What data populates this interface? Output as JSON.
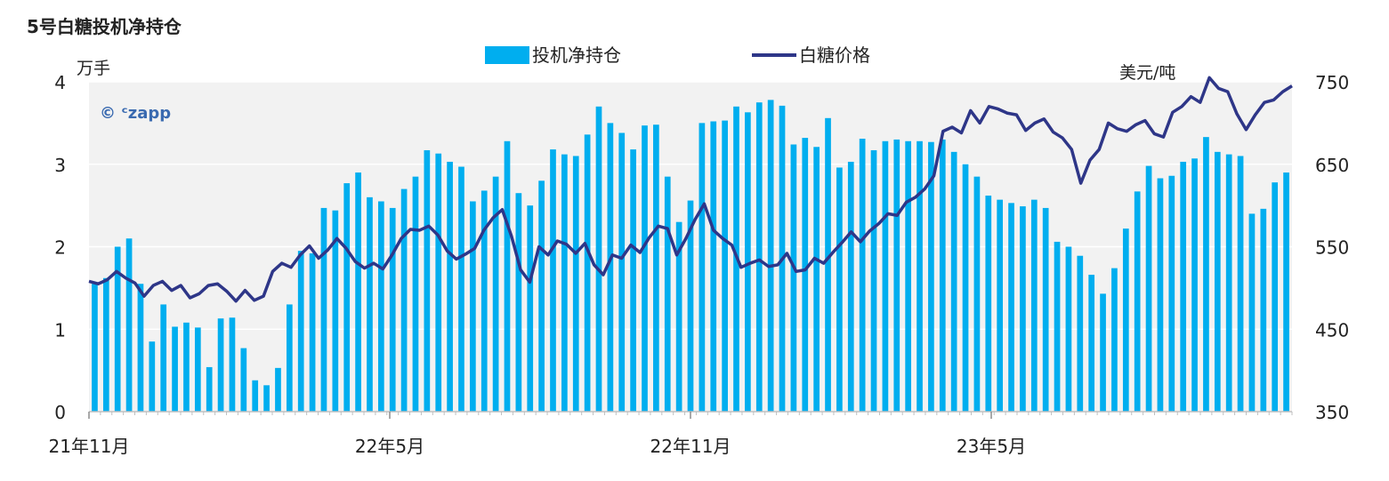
{
  "page_title": "5号白糖投机净持仓",
  "watermark": "© ᶜzapp",
  "colors": {
    "bar": "#00AEEF",
    "line": "#2E3688",
    "plot_bg": "#F2F2F2",
    "grid": "#FFFFFF"
  },
  "chart_data": {
    "type": "bar+line",
    "title": "5号白糖投机净持仓",
    "legend_position": "top-center",
    "grid": true,
    "x_tick_labels": [
      "21年11月",
      "22年5月",
      "22年11月",
      "23年5月"
    ],
    "y_left": {
      "unit": "万手",
      "range": [
        0,
        4
      ],
      "ticks": [
        "0",
        "1",
        "2",
        "3",
        "4"
      ]
    },
    "y_right": {
      "unit": "美元/吨",
      "range": [
        350,
        750
      ],
      "ticks": [
        "350",
        "450",
        "550",
        "650",
        "750"
      ]
    },
    "series": [
      {
        "name": "投机净持仓",
        "type": "bar",
        "axis": "left",
        "values": [
          1.55,
          1.62,
          2.0,
          2.1,
          1.55,
          0.85,
          1.3,
          1.03,
          1.08,
          1.02,
          0.54,
          1.13,
          1.14,
          0.77,
          0.38,
          0.32,
          0.53,
          1.3,
          1.95,
          1.92,
          2.47,
          2.44,
          2.77,
          2.9,
          2.6,
          2.55,
          2.47,
          2.7,
          2.85,
          3.17,
          3.13,
          3.03,
          2.97,
          2.55,
          2.68,
          2.85,
          3.28,
          2.65,
          2.5,
          2.8,
          3.18,
          3.12,
          3.1,
          3.36,
          3.7,
          3.5,
          3.38,
          3.18,
          3.47,
          3.48,
          2.85,
          2.3,
          2.56,
          3.5,
          3.52,
          3.53,
          3.7,
          3.63,
          3.75,
          3.78,
          3.71,
          3.24,
          3.32,
          3.21,
          3.56,
          2.96,
          3.03,
          3.31,
          3.17,
          3.28,
          3.3,
          3.28,
          3.28,
          3.27,
          3.3,
          3.15,
          3.0,
          2.85,
          2.62,
          2.57,
          2.53,
          2.49,
          2.57,
          2.47,
          2.06,
          2.0,
          1.89,
          1.66,
          1.43,
          1.74,
          2.22,
          2.67,
          2.98,
          2.83,
          2.86,
          3.03,
          3.07,
          3.33,
          3.15,
          3.12,
          3.1,
          2.4,
          2.46,
          2.78,
          2.9
        ]
      },
      {
        "name": "白糖价格",
        "type": "line",
        "axis": "right",
        "values": [
          508,
          505,
          510,
          520,
          512,
          506,
          490,
          503,
          508,
          497,
          503,
          488,
          493,
          503,
          505,
          496,
          484,
          497,
          485,
          490,
          520,
          530,
          525,
          540,
          551,
          536,
          546,
          560,
          548,
          532,
          524,
          530,
          523,
          540,
          560,
          571,
          570,
          575,
          564,
          545,
          535,
          541,
          548,
          570,
          585,
          595,
          563,
          522,
          507,
          550,
          540,
          557,
          553,
          542,
          554,
          528,
          516,
          540,
          536,
          552,
          543,
          561,
          575,
          572,
          540,
          560,
          583,
          602,
          570,
          560,
          552,
          525,
          530,
          534,
          526,
          528,
          542,
          520,
          522,
          536,
          530,
          543,
          555,
          568,
          556,
          569,
          578,
          590,
          588,
          604,
          610,
          620,
          636,
          690,
          695,
          688,
          715,
          700,
          720,
          717,
          712,
          710,
          691,
          700,
          705,
          689,
          682,
          668,
          627,
          655,
          668,
          700,
          693,
          690,
          698,
          703,
          687,
          683,
          713,
          720,
          732,
          725,
          755,
          742,
          738,
          711,
          692,
          710,
          725,
          728,
          738,
          745
        ]
      }
    ]
  }
}
